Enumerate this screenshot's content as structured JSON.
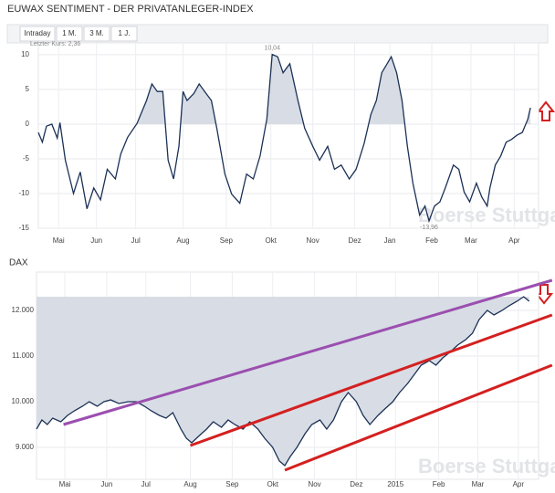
{
  "tabs": [
    "Intraday",
    "1 M.",
    "3 M.",
    "1 J."
  ],
  "chart_data": [
    {
      "type": "line",
      "title": "EUWAX SENTIMENT - DER PRIVATANLEGER-INDEX",
      "fill_to": "zero",
      "color": "#1c3156",
      "fill_color": "#d8dde5",
      "grid": true,
      "watermark": "Boerse Stuttgart",
      "annotations": {
        "last": "Letzter Kurs: 2,36",
        "max": "10,04",
        "min": "-13,96"
      },
      "x": [
        0,
        3,
        6,
        10,
        14,
        16,
        20,
        26,
        31,
        36,
        41,
        46,
        51,
        57,
        61,
        66,
        73,
        80,
        84,
        88,
        92,
        96,
        100,
        104,
        107,
        110,
        115,
        119,
        123,
        128,
        132,
        138,
        143,
        149,
        154,
        159,
        164,
        169,
        173,
        177,
        181,
        186,
        192,
        197,
        203,
        208,
        214,
        219,
        224,
        230,
        235,
        241,
        246,
        250,
        254,
        258,
        261,
        265,
        269,
        273,
        277,
        282,
        286,
        289,
        293,
        297,
        301,
        307,
        311,
        315,
        319,
        324,
        328,
        332,
        334,
        338,
        342,
        346,
        350,
        354,
        358,
        362,
        364
      ],
      "values": [
        -1.2,
        -2.6,
        -0.3,
        0,
        -2,
        0.2,
        -5.2,
        -10,
        -6.9,
        -12.2,
        -9.2,
        -10.9,
        -6.5,
        -7.9,
        -4.3,
        -1.9,
        0.1,
        3.4,
        5.8,
        4.7,
        4.7,
        -5.2,
        -7.9,
        -3.2,
        4.7,
        3.4,
        4.4,
        5.8,
        4.7,
        3.4,
        -0.6,
        -7.2,
        -10.1,
        -11.4,
        -7.2,
        -7.9,
        -4.6,
        0.7,
        10.04,
        9.7,
        7.4,
        8.7,
        3.4,
        -0.6,
        -3.2,
        -5.2,
        -3.2,
        -6.5,
        -5.9,
        -7.9,
        -6.5,
        -2.8,
        1.4,
        3.4,
        7.4,
        8.7,
        9.7,
        7.4,
        3.4,
        -3.2,
        -8.5,
        -13.1,
        -11.8,
        -13.96,
        -11.8,
        -11.2,
        -9.2,
        -5.9,
        -6.5,
        -9.8,
        -11.2,
        -8.5,
        -10.5,
        -11.8,
        -9.2,
        -5.9,
        -4.6,
        -2.6,
        -2.2,
        -1.6,
        -1.2,
        0.7,
        2.36
      ],
      "xlim": [
        0,
        370
      ],
      "ylim": [
        -15,
        11.7
      ],
      "yticks": [
        10,
        5,
        0,
        -5,
        -10,
        -15
      ],
      "xticks": [
        {
          "value": 15,
          "label": "Mai"
        },
        {
          "value": 43,
          "label": "Jun"
        },
        {
          "value": 72,
          "label": "Jul"
        },
        {
          "value": 107,
          "label": "Aug"
        },
        {
          "value": 139,
          "label": "Sep"
        },
        {
          "value": 172,
          "label": "Okt"
        },
        {
          "value": 203,
          "label": "Nov"
        },
        {
          "value": 234,
          "label": "Dez"
        },
        {
          "value": 260,
          "label": "Jan"
        },
        {
          "value": 291,
          "label": "Feb"
        },
        {
          "value": 320,
          "label": "Mar"
        },
        {
          "value": 352,
          "label": "Apr"
        }
      ]
    },
    {
      "type": "line",
      "title": "DAX",
      "fill_to": "max",
      "color": "#1c3156",
      "fill_color": "#d8dde5",
      "grid": true,
      "watermark": "Boerse Stuttgart",
      "x": [
        0,
        4,
        8,
        12,
        18,
        23,
        28,
        34,
        39,
        45,
        50,
        55,
        61,
        68,
        74,
        80,
        85,
        91,
        96,
        101,
        107,
        111,
        115,
        120,
        126,
        131,
        137,
        142,
        147,
        153,
        158,
        164,
        169,
        175,
        180,
        184,
        188,
        193,
        199,
        204,
        210,
        215,
        220,
        226,
        231,
        237,
        242,
        247,
        253,
        258,
        264,
        269,
        275,
        280,
        285,
        291,
        296,
        301,
        307,
        312,
        318,
        323,
        328,
        334,
        339,
        345,
        350,
        356,
        361,
        365
      ],
      "values": [
        9400,
        9600,
        9500,
        9640,
        9560,
        9700,
        9800,
        9900,
        10000,
        9900,
        10000,
        10040,
        9960,
        10000,
        10000,
        9900,
        9800,
        9700,
        9640,
        9760,
        9400,
        9200,
        9100,
        9240,
        9400,
        9560,
        9440,
        9600,
        9500,
        9400,
        9560,
        9400,
        9200,
        9000,
        8700,
        8600,
        8800,
        9000,
        9300,
        9500,
        9600,
        9400,
        9600,
        10000,
        10200,
        10000,
        9700,
        9500,
        9700,
        9840,
        10000,
        10200,
        10400,
        10600,
        10800,
        10900,
        10800,
        10960,
        11100,
        11240,
        11360,
        11500,
        11800,
        12000,
        11900,
        12000,
        12100,
        12200,
        12300,
        12200
      ],
      "trendlines": [
        {
          "color": "#9b4fb0",
          "x": [
            20,
            382
          ],
          "values": [
            9500,
            12660
          ]
        },
        {
          "color": "#d42020",
          "x": [
            114,
            382
          ],
          "values": [
            9040,
            11900
          ]
        },
        {
          "color": "#d42020",
          "x": [
            184,
            382
          ],
          "values": [
            8500,
            10800
          ]
        }
      ],
      "xlim": [
        0,
        372
      ],
      "ylim": [
        8300,
        12840
      ],
      "yticks": [
        {
          "value": 9000,
          "label": "9.000"
        },
        {
          "value": 10000,
          "label": "10.000"
        },
        {
          "value": 11000,
          "label": "11.000"
        },
        {
          "value": 12000,
          "label": "12.000"
        }
      ],
      "xticks": [
        {
          "value": 21,
          "label": "Mai"
        },
        {
          "value": 52,
          "label": "Jun"
        },
        {
          "value": 81,
          "label": "Jul"
        },
        {
          "value": 114,
          "label": "Aug"
        },
        {
          "value": 145,
          "label": "Sep"
        },
        {
          "value": 175,
          "label": "Okt"
        },
        {
          "value": 206,
          "label": "Nov"
        },
        {
          "value": 237,
          "label": "Dez"
        },
        {
          "value": 266,
          "label": "2015"
        },
        {
          "value": 298,
          "label": "Feb"
        },
        {
          "value": 327,
          "label": "Mar"
        },
        {
          "value": 357,
          "label": "Apr"
        }
      ]
    }
  ]
}
